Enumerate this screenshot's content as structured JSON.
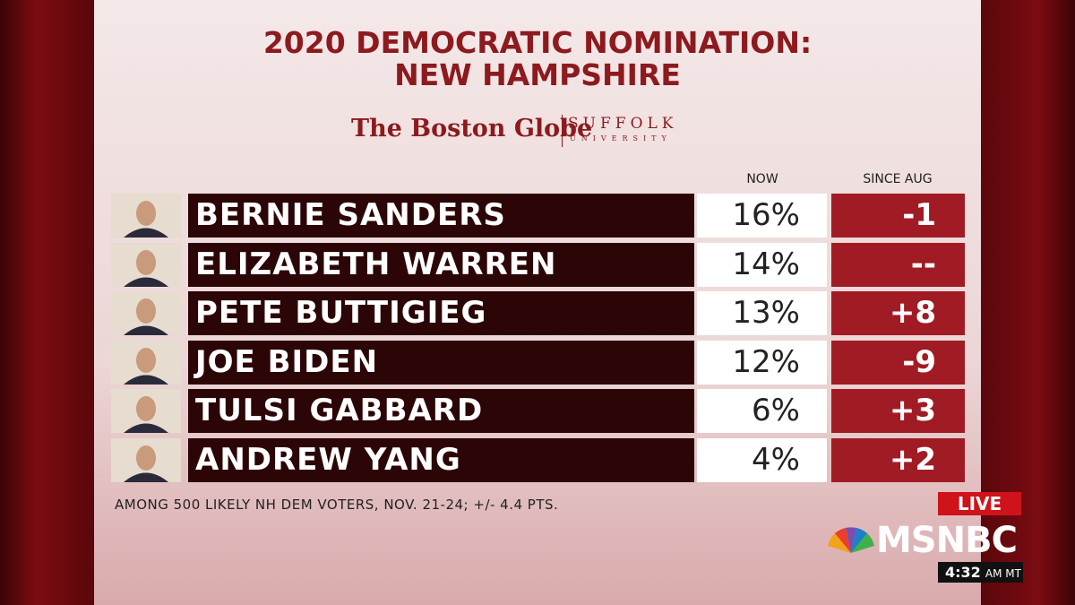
{
  "header": {
    "title_lines": [
      "2020 DEMOCRATIC NOMINATION:",
      "NEW HAMPSHIRE"
    ],
    "logo_left": "The Boston Globe",
    "logo_right_top": "SUFFOLK",
    "logo_right_bottom": "UNIVERSITY"
  },
  "table": {
    "columns": [
      "NOW",
      "SINCE AUG"
    ],
    "rows": [
      [
        "BERNIE SANDERS",
        "16%",
        "-1"
      ],
      [
        "ELIZABETH WARREN",
        "14%",
        "--"
      ],
      [
        "PETE BUTTIGIEG",
        "13%",
        "+8"
      ],
      [
        "JOE BIDEN",
        "12%",
        "-9"
      ],
      [
        "TULSI GABBARD",
        "6%",
        "+3"
      ],
      [
        "ANDREW YANG",
        "4%",
        "+2"
      ]
    ]
  },
  "footnote": "AMONG 500 LIKELY NH DEM VOTERS, NOV. 21-24; +/- 4.4 PTS.",
  "bug": {
    "live": "LIVE",
    "network": "MSNBC",
    "time": "4:32",
    "time_suffix": "AM MT"
  }
}
